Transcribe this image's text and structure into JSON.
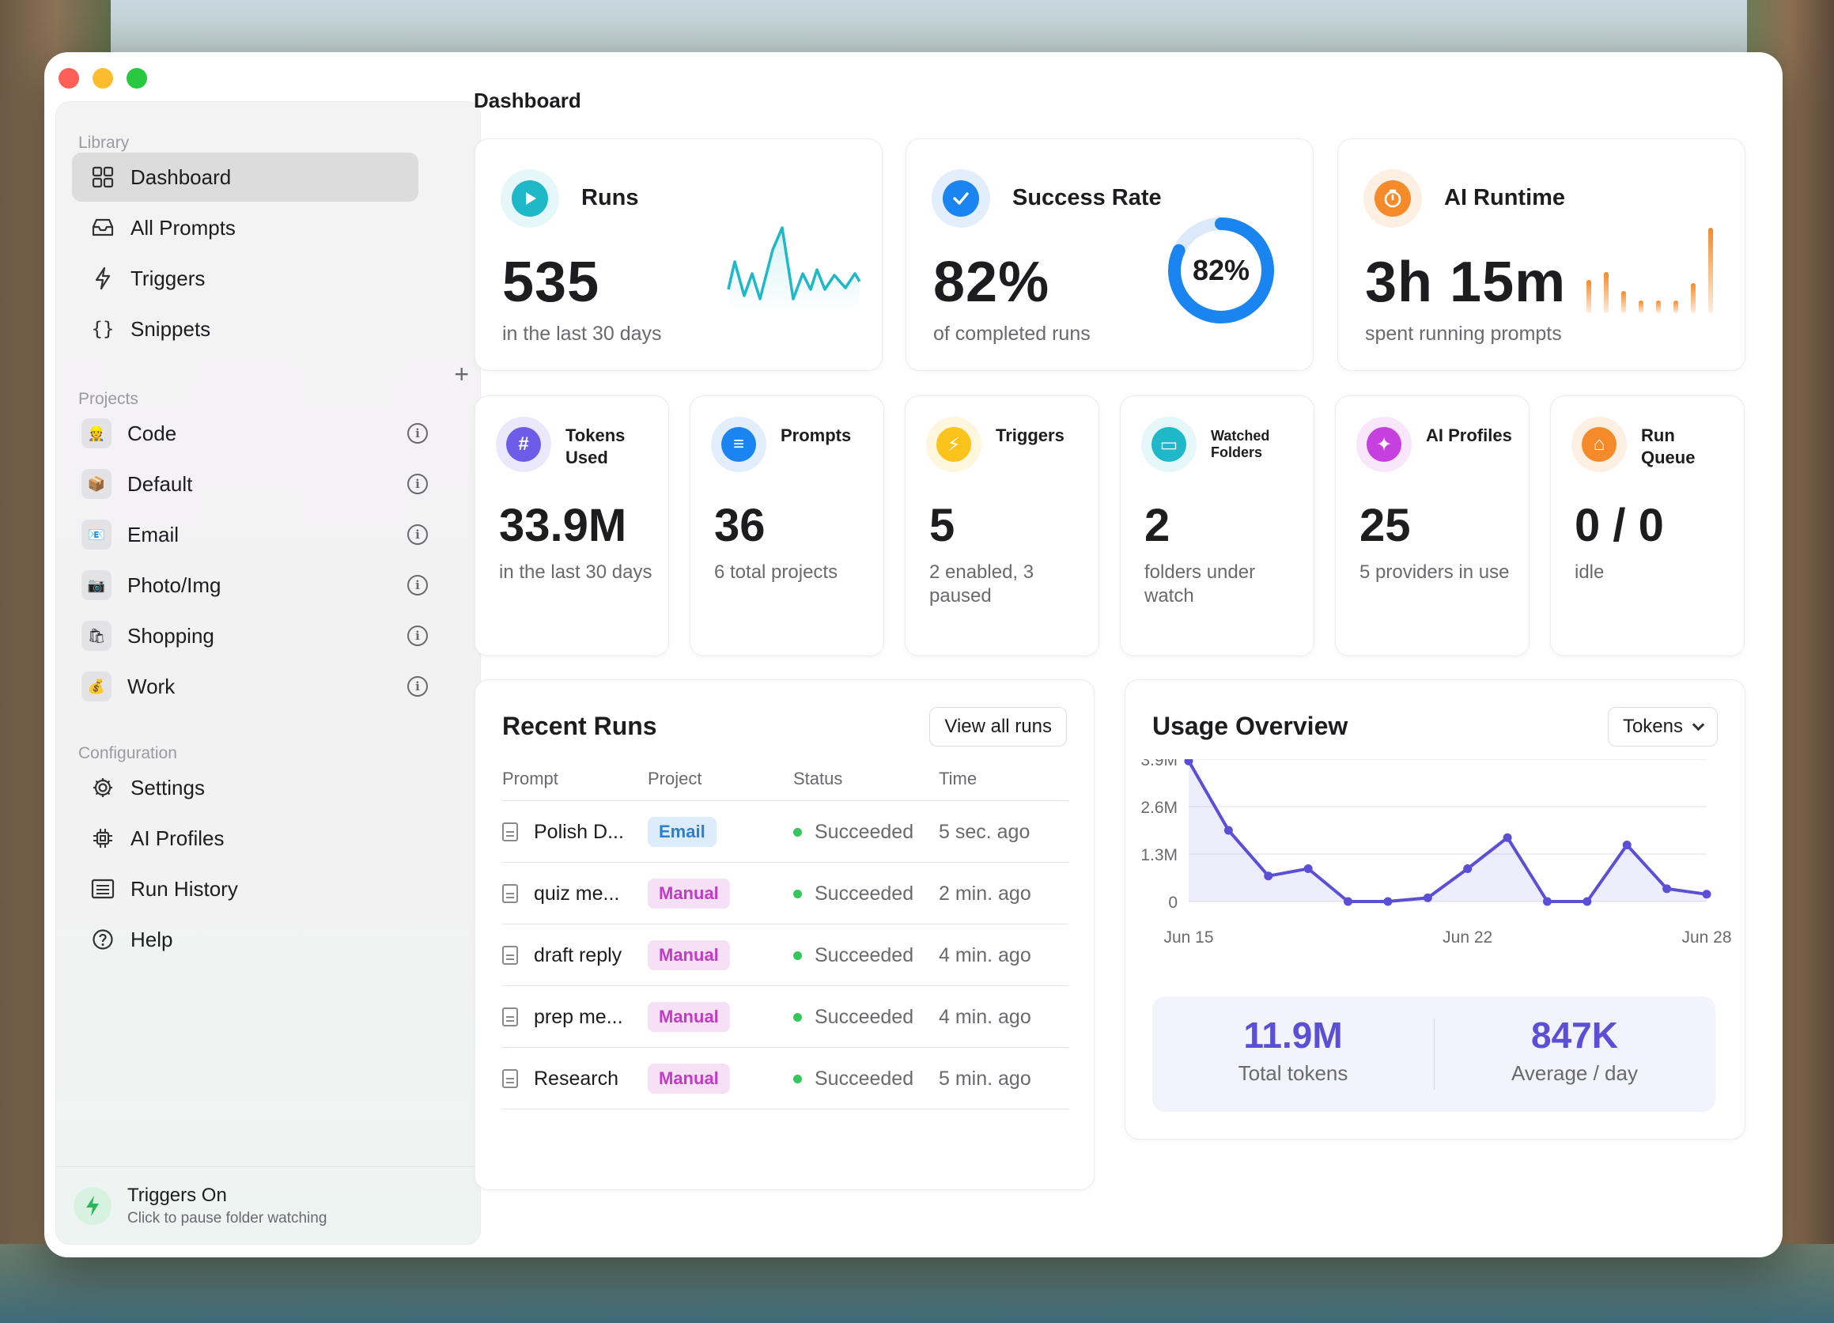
{
  "window": {
    "title": "Dashboard"
  },
  "sidebar": {
    "library_label": "Library",
    "library": [
      {
        "label": "Dashboard",
        "icon": "grid-icon",
        "active": true
      },
      {
        "label": "All Prompts",
        "icon": "tray-icon"
      },
      {
        "label": "Triggers",
        "icon": "bolt-icon"
      },
      {
        "label": "Snippets",
        "icon": "braces-icon"
      }
    ],
    "projects_label": "Projects",
    "projects": [
      {
        "label": "Code",
        "emoji": "👷"
      },
      {
        "label": "Default",
        "emoji": "📦"
      },
      {
        "label": "Email",
        "emoji": "📧"
      },
      {
        "label": "Photo/Img",
        "emoji": "📷"
      },
      {
        "label": "Shopping",
        "emoji": "🛍"
      },
      {
        "label": "Work",
        "emoji": "💰"
      }
    ],
    "config_label": "Configuration",
    "config": [
      {
        "label": "Settings",
        "icon": "gear-icon"
      },
      {
        "label": "AI Profiles",
        "icon": "chip-icon"
      },
      {
        "label": "Run History",
        "icon": "list-icon"
      },
      {
        "label": "Help",
        "icon": "help-icon"
      }
    ],
    "footer": {
      "title": "Triggers On",
      "subtitle": "Click to pause folder watching"
    }
  },
  "cards": {
    "runs": {
      "title": "Runs",
      "value": "535",
      "sub": "in the last 30 days",
      "color": "#1fb8c9"
    },
    "success": {
      "title": "Success Rate",
      "value": "82%",
      "sub": "of completed runs",
      "ring_label": "82%",
      "percent": 82,
      "color": "#1a84f0"
    },
    "runtime": {
      "title": "AI Runtime",
      "value": "3h 15m",
      "sub": "spent running prompts",
      "color": "#f58a2a"
    }
  },
  "stats": [
    {
      "title": "Tokens Used",
      "value": "33.9M",
      "sub": "in the last 30 days",
      "color": "#6c5ce7",
      "glyph": "#"
    },
    {
      "title": "Prompts",
      "value": "36",
      "sub": "6 total projects",
      "color": "#1a84f0",
      "glyph": "≡"
    },
    {
      "title": "Triggers",
      "value": "5",
      "sub": "2 enabled, 3 paused",
      "color": "#fbc31c",
      "glyph": "⚡"
    },
    {
      "title": "Watched Folders",
      "value": "2",
      "sub": "folders under watch",
      "color": "#1fb8c9",
      "glyph": "▭"
    },
    {
      "title": "AI Profiles",
      "value": "25",
      "sub": "5 providers in use",
      "color": "#c640e0",
      "glyph": "✦"
    },
    {
      "title": "Run Queue",
      "value": "0 / 0",
      "sub": "idle",
      "color": "#f58a2a",
      "glyph": "⌂"
    }
  ],
  "recent_runs": {
    "title": "Recent Runs",
    "view_all_label": "View all runs",
    "columns": [
      "Prompt",
      "Project",
      "Status",
      "Time"
    ],
    "rows": [
      {
        "prompt": "Polish D...",
        "project": "Email",
        "status": "Succeeded",
        "time": "5 sec. ago"
      },
      {
        "prompt": "quiz me...",
        "project": "Manual",
        "status": "Succeeded",
        "time": "2 min. ago"
      },
      {
        "prompt": "draft reply",
        "project": "Manual",
        "status": "Succeeded",
        "time": "4 min. ago"
      },
      {
        "prompt": "prep me...",
        "project": "Manual",
        "status": "Succeeded",
        "time": "4 min. ago"
      },
      {
        "prompt": "Research",
        "project": "Manual",
        "status": "Succeeded",
        "time": "5 min. ago"
      }
    ]
  },
  "usage": {
    "title": "Usage Overview",
    "selector_value": "Tokens",
    "total_value": "11.9M",
    "total_label": "Total tokens",
    "avg_value": "847K",
    "avg_label": "Average / day"
  },
  "chart_data": {
    "type": "area",
    "y_ticks": [
      "3.9M",
      "2.6M",
      "1.3M",
      "0"
    ],
    "x_ticks": [
      "Jun 15",
      "Jun 22",
      "Jun 28"
    ],
    "ylim": [
      0,
      3900000
    ],
    "series": [
      {
        "values": [
          3850000,
          1950000,
          700000,
          900000,
          0,
          0,
          100000,
          900000,
          1750000,
          0,
          0,
          1550000,
          350000,
          200000
        ]
      }
    ],
    "color": "#5b4fd6"
  }
}
